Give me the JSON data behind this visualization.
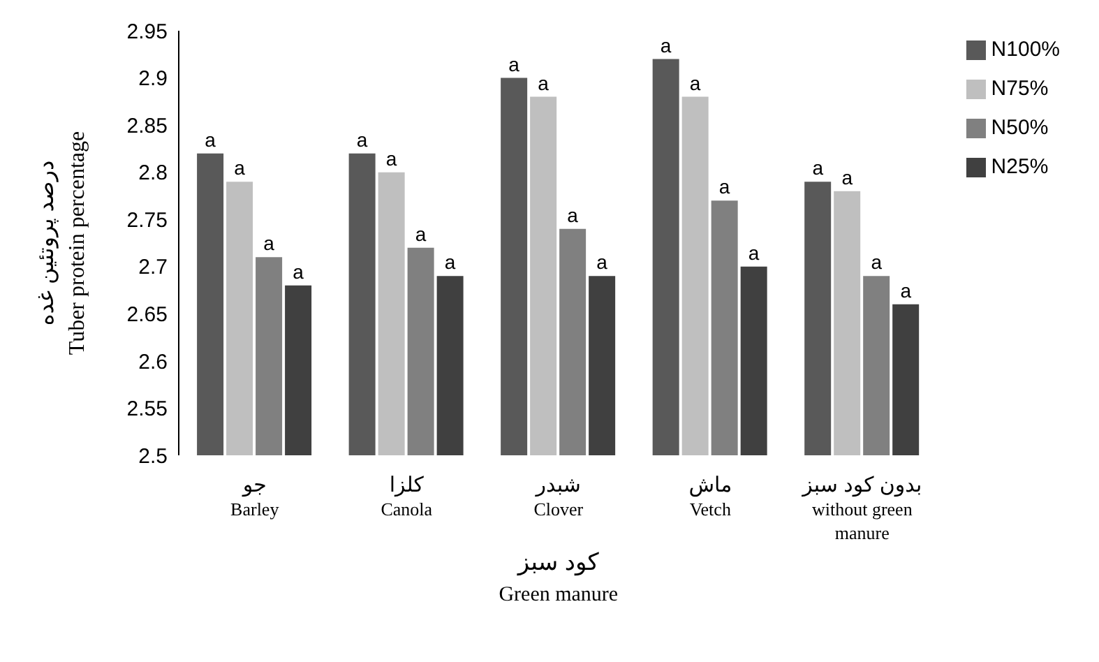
{
  "chart_data": {
    "type": "bar",
    "xlabel": "کود سبز\nGreen manure",
    "ylabel": "درصد پروتئین غده\nTuber protein percentage",
    "categories": [
      "جو\nBarley",
      "کلزا\nCanola",
      "شبدر\nClover",
      "ماش\nVetch",
      "بدون کود سبز\nwithout green\nmanure"
    ],
    "series": [
      {
        "name": "N100%",
        "color": "#595959",
        "values": [
          2.82,
          2.82,
          2.9,
          2.92,
          2.79
        ],
        "value_labels": [
          "a",
          "a",
          "a",
          "a",
          "a"
        ]
      },
      {
        "name": "N75%",
        "color": "#bfbfbf",
        "values": [
          2.79,
          2.8,
          2.88,
          2.88,
          2.78
        ],
        "value_labels": [
          "a",
          "a",
          "a",
          "a",
          "a"
        ]
      },
      {
        "name": "N50%",
        "color": "#808080",
        "values": [
          2.71,
          2.72,
          2.74,
          2.77,
          2.69
        ],
        "value_labels": [
          "a",
          "a",
          "a",
          "a",
          "a"
        ]
      },
      {
        "name": "N25%",
        "color": "#404040",
        "values": [
          2.68,
          2.69,
          2.69,
          2.7,
          2.66
        ],
        "value_labels": [
          "a",
          "a",
          "a",
          "a",
          "a"
        ]
      }
    ],
    "ylim": [
      2.5,
      2.95
    ],
    "yticks": [
      2.5,
      2.55,
      2.6,
      2.65,
      2.7,
      2.75,
      2.8,
      2.85,
      2.9,
      2.95
    ],
    "grid": false,
    "legend": "top right"
  }
}
